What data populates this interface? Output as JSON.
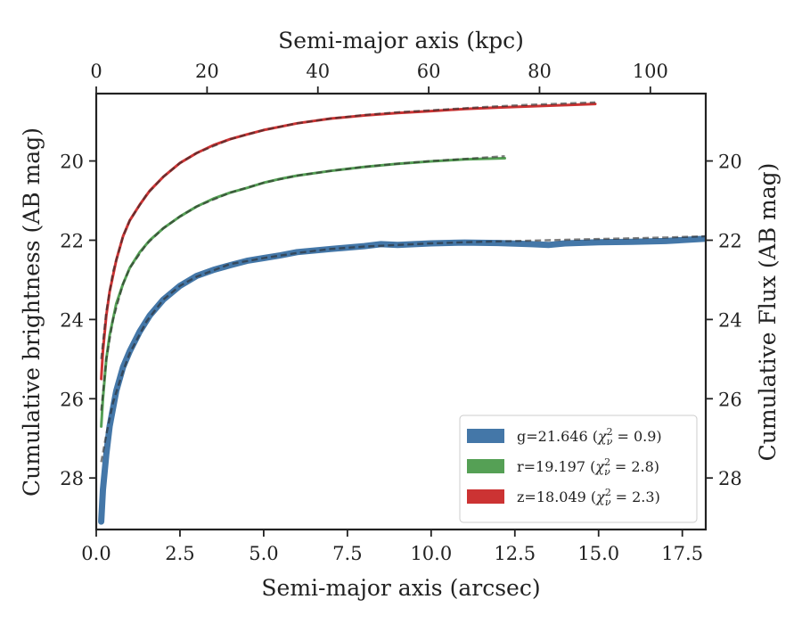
{
  "chart_data": {
    "type": "line",
    "xlabel": "Semi-major axis (arcsec)",
    "xlabel_top": "Semi-major axis (kpc)",
    "ylabel": "Cumulative brightness (AB mag)",
    "ylabel_right": "Cumulative Flux (AB mag)",
    "xlim": [
      0,
      18.2
    ],
    "xlim_top": [
      0,
      110
    ],
    "ylim": [
      29.3,
      18.3
    ],
    "y_inverted": true,
    "xticks": [
      0.0,
      2.5,
      5.0,
      7.5,
      10.0,
      12.5,
      15.0,
      17.5
    ],
    "xtick_labels": [
      "0.0",
      "2.5",
      "5.0",
      "7.5",
      "10.0",
      "12.5",
      "15.0",
      "17.5"
    ],
    "xticks_top": [
      0,
      20,
      40,
      60,
      80,
      100
    ],
    "xtick_labels_top": [
      "0",
      "20",
      "40",
      "60",
      "80",
      "100"
    ],
    "yticks": [
      20,
      22,
      24,
      26,
      28
    ],
    "ytick_labels": [
      "20",
      "22",
      "24",
      "26",
      "28"
    ],
    "grid": false,
    "legend_position": "lower-right",
    "series": [
      {
        "name": "g=21.646 ($\\chi^2_\\nu = 0.9$)",
        "legend_prefix": "g=21.646 (",
        "legend_chi": "χ",
        "legend_sub": "ν",
        "legend_sup": "2",
        "legend_suffix": " = 0.9)",
        "color": "#4477a8",
        "band": true,
        "x": [
          0.15,
          0.2,
          0.3,
          0.4,
          0.6,
          0.8,
          1.0,
          1.3,
          1.6,
          2.0,
          2.5,
          3.0,
          3.5,
          4.0,
          4.5,
          5.0,
          5.5,
          6.0,
          7.0,
          8.0,
          8.5,
          9.0,
          10.0,
          11.0,
          12.0,
          13.0,
          13.5,
          14.0,
          15.0,
          16.0,
          17.0,
          18.2
        ],
        "y": [
          29.1,
          28.3,
          27.4,
          26.7,
          25.8,
          25.2,
          24.8,
          24.3,
          23.9,
          23.5,
          23.15,
          22.9,
          22.75,
          22.63,
          22.52,
          22.45,
          22.38,
          22.3,
          22.22,
          22.15,
          22.1,
          22.12,
          22.08,
          22.06,
          22.07,
          22.1,
          22.12,
          22.08,
          22.05,
          22.04,
          22.02,
          21.96
        ],
        "model_x": [
          0.15,
          0.3,
          0.5,
          0.8,
          1.0,
          1.5,
          2.0,
          2.5,
          3.0,
          4.0,
          5.0,
          6.0,
          7.0,
          8.0,
          9.0,
          10.0,
          11.0,
          12.0,
          13.0,
          14.0,
          15.0,
          16.0,
          17.0,
          18.2
        ],
        "model_y": [
          27.6,
          26.9,
          26.1,
          25.3,
          24.85,
          24.05,
          23.5,
          23.15,
          22.92,
          22.6,
          22.45,
          22.32,
          22.22,
          22.16,
          22.12,
          22.08,
          22.05,
          22.03,
          22.01,
          21.99,
          21.97,
          21.95,
          21.93,
          21.9
        ]
      },
      {
        "name": "r=19.197 ($\\chi^2_\\nu = 2.8$)",
        "legend_prefix": "r=19.197 (",
        "legend_chi": "χ",
        "legend_sub": "ν",
        "legend_sup": "2",
        "legend_suffix": " = 2.8)",
        "color": "#55a055",
        "band": false,
        "x": [
          0.15,
          0.2,
          0.3,
          0.4,
          0.6,
          0.8,
          1.0,
          1.3,
          1.6,
          2.0,
          2.5,
          3.0,
          3.5,
          4.0,
          4.5,
          5.0,
          5.5,
          6.0,
          7.0,
          8.0,
          9.0,
          10.0,
          11.0,
          12.2
        ],
        "y": [
          26.7,
          26.0,
          25.0,
          24.4,
          23.6,
          23.1,
          22.7,
          22.3,
          22.0,
          21.7,
          21.4,
          21.15,
          20.95,
          20.8,
          20.68,
          20.55,
          20.45,
          20.37,
          20.25,
          20.15,
          20.07,
          20.01,
          19.96,
          19.93
        ],
        "model_x": [
          0.15,
          0.3,
          0.5,
          0.8,
          1.0,
          1.5,
          2.0,
          2.5,
          3.0,
          4.0,
          5.0,
          6.0,
          7.0,
          8.0,
          9.0,
          10.0,
          11.0,
          12.2
        ],
        "model_y": [
          26.3,
          25.0,
          24.0,
          23.1,
          22.7,
          22.1,
          21.7,
          21.4,
          21.15,
          20.8,
          20.55,
          20.37,
          20.25,
          20.15,
          20.07,
          20.0,
          19.95,
          19.88
        ]
      },
      {
        "name": "z=18.049 ($\\chi^2_\\nu = 2.3$)",
        "legend_prefix": "z=18.049 (",
        "legend_chi": "χ",
        "legend_sub": "ν",
        "legend_sup": "2",
        "legend_suffix": " = 2.3)",
        "color": "#cc3333",
        "band": false,
        "x": [
          0.15,
          0.2,
          0.3,
          0.4,
          0.6,
          0.8,
          1.0,
          1.3,
          1.6,
          2.0,
          2.5,
          3.0,
          3.5,
          4.0,
          4.5,
          5.0,
          6.0,
          7.0,
          8.0,
          9.0,
          10.0,
          11.0,
          12.0,
          13.0,
          14.0,
          14.9
        ],
        "y": [
          25.5,
          24.8,
          23.9,
          23.3,
          22.5,
          21.9,
          21.5,
          21.1,
          20.75,
          20.4,
          20.05,
          19.8,
          19.6,
          19.45,
          19.33,
          19.22,
          19.05,
          18.93,
          18.85,
          18.79,
          18.74,
          18.69,
          18.65,
          18.62,
          18.59,
          18.56
        ],
        "model_x": [
          0.15,
          0.3,
          0.5,
          0.8,
          1.0,
          1.5,
          2.0,
          2.5,
          3.0,
          4.0,
          5.0,
          6.0,
          7.0,
          8.0,
          9.0,
          10.0,
          11.0,
          12.0,
          13.0,
          14.0,
          14.9
        ],
        "model_y": [
          25.0,
          23.8,
          22.8,
          21.9,
          21.5,
          20.85,
          20.4,
          20.05,
          19.8,
          19.45,
          19.22,
          19.05,
          18.93,
          18.84,
          18.77,
          18.72,
          18.67,
          18.62,
          18.58,
          18.55,
          18.52
        ]
      }
    ]
  }
}
